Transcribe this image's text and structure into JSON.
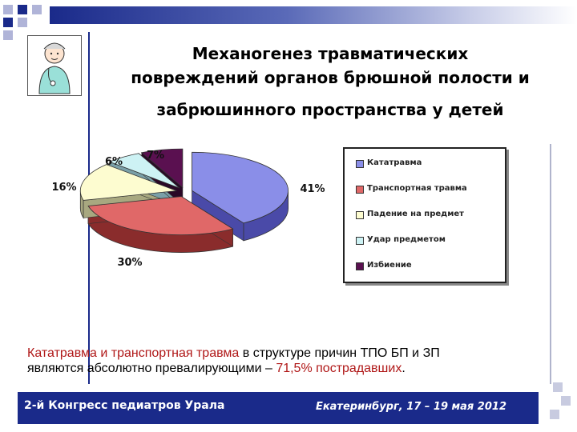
{
  "title": {
    "line1": "Механогенез травматических",
    "line2": "повреждений органов брюшной полости и",
    "line3": "забрюшинного пространства у детей"
  },
  "chart_data": {
    "type": "pie",
    "categories": [
      "Кататравма",
      "Транспортная травма",
      "Падение на предмет",
      "Удар предметом",
      "Избиение"
    ],
    "values": [
      41,
      30,
      16,
      6,
      7
    ],
    "labels": [
      "41%",
      "30%",
      "16%",
      "6%",
      "7%"
    ],
    "colors": [
      "#8a8ee8",
      "#e06868",
      "#fdfcd0",
      "#cdf2f4",
      "#5a1050"
    ],
    "side_colors": [
      "#4a4aa8",
      "#8a2c2c",
      "#a8a880",
      "#7aa0a8",
      "#2a0826"
    ],
    "legend_position": "right"
  },
  "caption": {
    "part1": "Кататравма и транспортная травма",
    "part2": " в структуре причин ТПО БП и ЗП",
    "part3": "являются абсолютно превалирующими – ",
    "part4": "71,5% пострадавших",
    "part5": "."
  },
  "footer": {
    "left": "2-й Конгресс педиатров Урала",
    "right": "Екатеринбург,  17 – 19 мая 2012"
  }
}
